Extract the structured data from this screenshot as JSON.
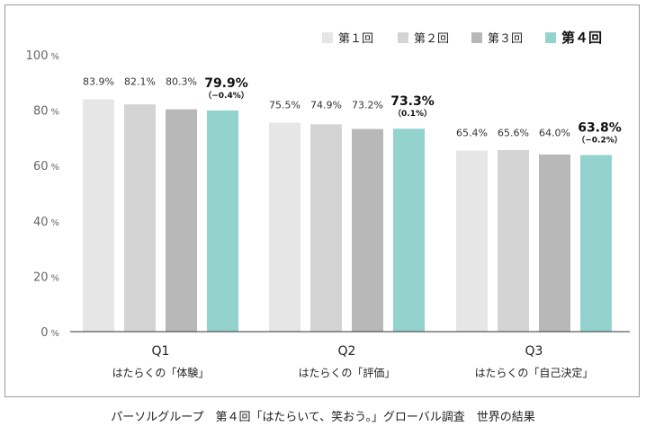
{
  "chart_data": {
    "type": "bar",
    "y_unit": "%",
    "ylim": [
      0,
      100
    ],
    "y_ticks": [
      {
        "value": 0,
        "label": "0",
        "unit": "%"
      },
      {
        "value": 20,
        "label": "20",
        "unit": "%"
      },
      {
        "value": 40,
        "label": "40",
        "unit": "%"
      },
      {
        "value": 60,
        "label": "60",
        "unit": "%"
      },
      {
        "value": 80,
        "label": "80",
        "unit": "%"
      },
      {
        "value": 100,
        "label": "100",
        "unit": "%"
      }
    ],
    "grid": false,
    "legend_position": "top-right",
    "categories": [
      {
        "label": "Q1",
        "sublabel": "はたらくの「体験」"
      },
      {
        "label": "Q2",
        "sublabel": "はたらくの「評価」"
      },
      {
        "label": "Q3",
        "sublabel": "はたらくの「自己決定」"
      }
    ],
    "series": [
      {
        "name": "第１回",
        "color": "#e6e6e6",
        "highlight": false,
        "values": [
          83.9,
          75.5,
          65.4
        ],
        "labels": [
          "83.9%",
          "75.5%",
          "65.4%"
        ]
      },
      {
        "name": "第２回",
        "color": "#d4d4d4",
        "highlight": false,
        "values": [
          82.1,
          74.9,
          65.6
        ],
        "labels": [
          "82.1%",
          "74.9%",
          "65.6%"
        ]
      },
      {
        "name": "第３回",
        "color": "#b8b8b8",
        "highlight": false,
        "values": [
          80.3,
          73.2,
          64.0
        ],
        "labels": [
          "80.3%",
          "73.2%",
          "64.0%"
        ]
      },
      {
        "name": "第４回",
        "color": "#93d2cd",
        "highlight": true,
        "values": [
          79.9,
          73.3,
          63.8
        ],
        "labels": [
          "79.9%",
          "73.3%",
          "63.8%"
        ],
        "diffs": [
          "（−0.4%）",
          "（0.1%）",
          "（−0.2%）"
        ]
      }
    ]
  },
  "caption": "パーソルグループ　第４回「はたらいて、笑おう。」グローバル調査　世界の結果"
}
